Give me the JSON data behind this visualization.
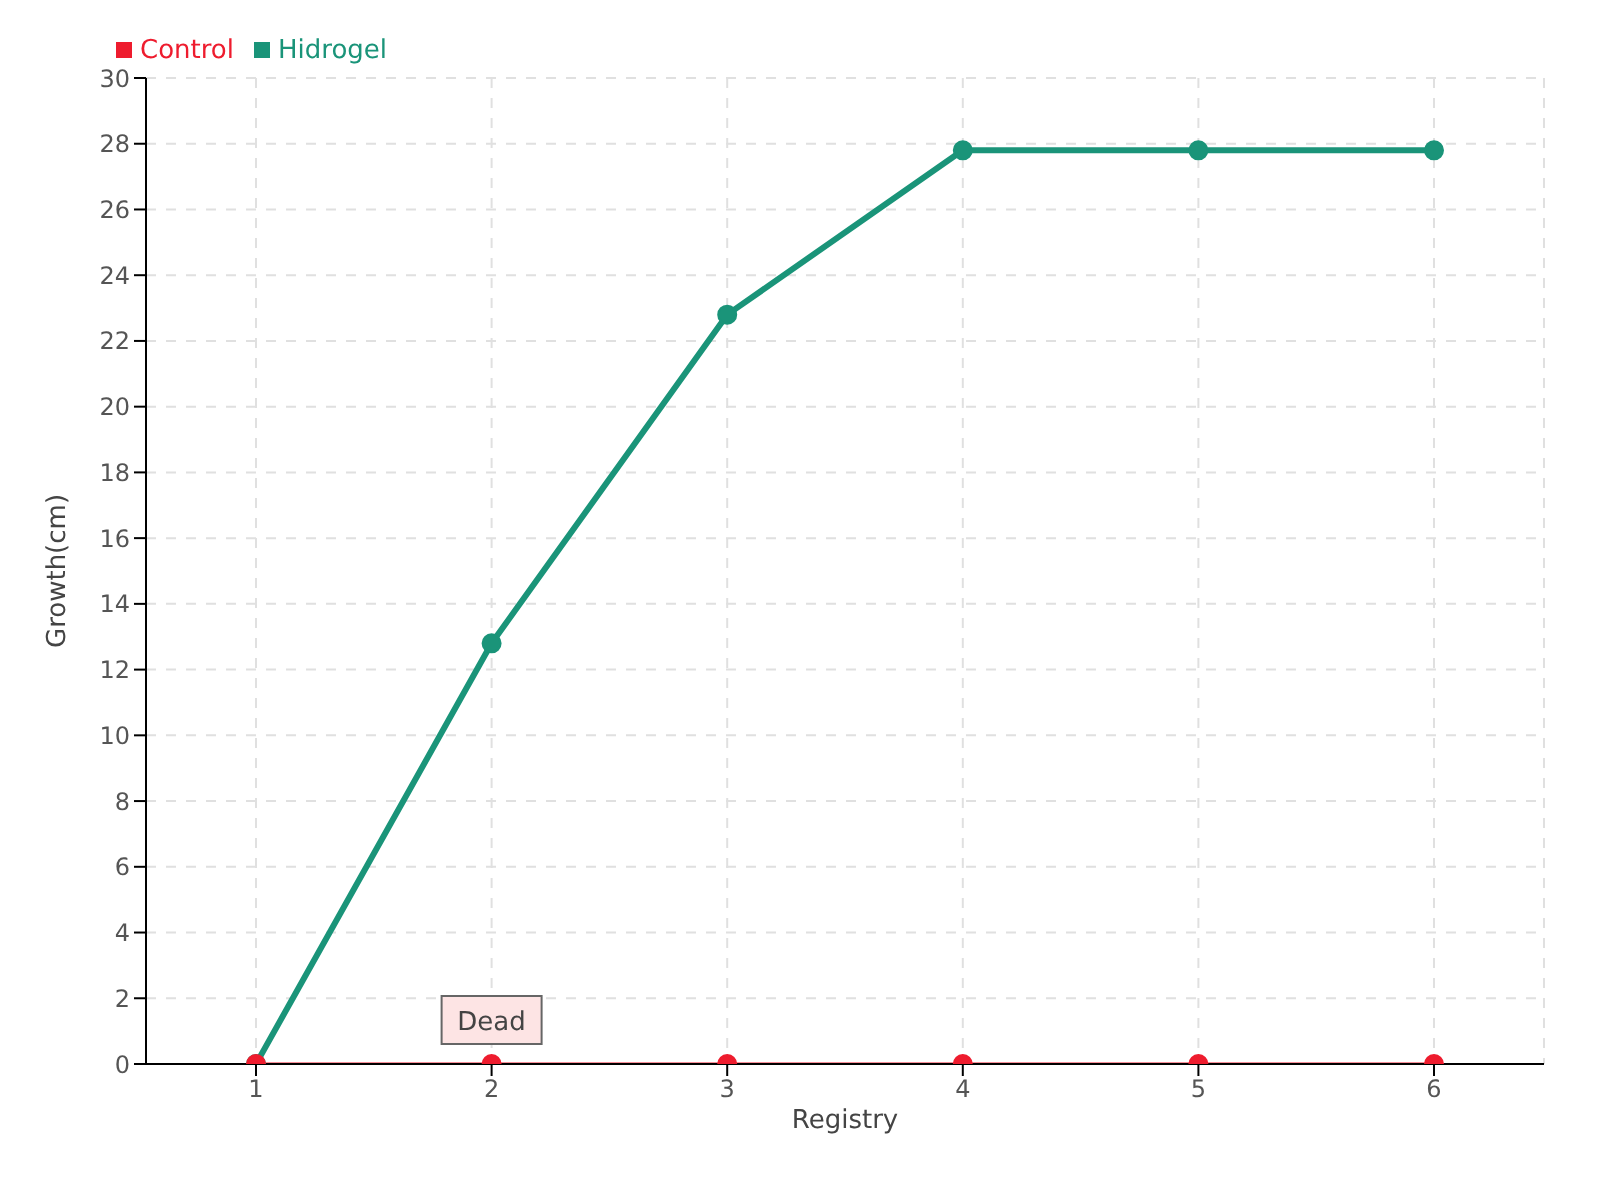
{
  "chart_data": {
    "type": "line",
    "xlabel": "Registry",
    "ylabel": "Growth(cm)",
    "categories": [
      "1",
      "2",
      "3",
      "4",
      "5",
      "6"
    ],
    "series": [
      {
        "name": "Hidrogel",
        "color": "#1a9479",
        "values": [
          0,
          12.8,
          22.8,
          27.8,
          27.8,
          27.8
        ]
      },
      {
        "name": "Control",
        "color": "#ee1c2e",
        "values": [
          0,
          0,
          0,
          0,
          0,
          0
        ]
      }
    ],
    "ylim": [
      0,
      30
    ],
    "yticks": [
      0,
      2,
      4,
      6,
      8,
      10,
      12,
      14,
      16,
      18,
      20,
      22,
      24,
      26,
      28,
      30
    ],
    "grid": true,
    "legend": "top left",
    "marker": "circle",
    "line_style": "solid",
    "annotations": [
      {
        "text": "Dead",
        "x": "2",
        "y": 0
      }
    ]
  }
}
